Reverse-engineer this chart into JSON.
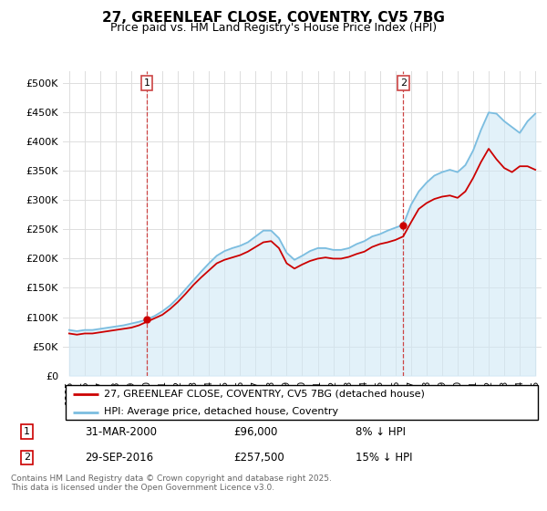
{
  "title": "27, GREENLEAF CLOSE, COVENTRY, CV5 7BG",
  "subtitle": "Price paid vs. HM Land Registry's House Price Index (HPI)",
  "ylim": [
    0,
    520000
  ],
  "yticks": [
    0,
    50000,
    100000,
    150000,
    200000,
    250000,
    300000,
    350000,
    400000,
    450000,
    500000
  ],
  "ytick_labels": [
    "£0",
    "£50K",
    "£100K",
    "£150K",
    "£200K",
    "£250K",
    "£300K",
    "£350K",
    "£400K",
    "£450K",
    "£500K"
  ],
  "legend_label_red": "27, GREENLEAF CLOSE, COVENTRY, CV5 7BG (detached house)",
  "legend_label_blue": "HPI: Average price, detached house, Coventry",
  "annotation1_date": "31-MAR-2000",
  "annotation1_price": "£96,000",
  "annotation1_hpi": "8% ↓ HPI",
  "annotation2_date": "29-SEP-2016",
  "annotation2_price": "£257,500",
  "annotation2_hpi": "15% ↓ HPI",
  "footer": "Contains HM Land Registry data © Crown copyright and database right 2025.\nThis data is licensed under the Open Government Licence v3.0.",
  "line_color_red": "#cc0000",
  "line_color_blue": "#7bbde0",
  "fill_color_blue": "#d0e8f5",
  "background_color": "#ffffff",
  "grid_color": "#dddddd",
  "years": [
    1995.0,
    1995.5,
    1996.0,
    1996.5,
    1997.0,
    1997.5,
    1998.0,
    1998.5,
    1999.0,
    1999.5,
    2000.0,
    2000.5,
    2001.0,
    2001.5,
    2002.0,
    2002.5,
    2003.0,
    2003.5,
    2004.0,
    2004.5,
    2005.0,
    2005.5,
    2006.0,
    2006.5,
    2007.0,
    2007.5,
    2008.0,
    2008.5,
    2009.0,
    2009.5,
    2010.0,
    2010.5,
    2011.0,
    2011.5,
    2012.0,
    2012.5,
    2013.0,
    2013.5,
    2014.0,
    2014.5,
    2015.0,
    2015.5,
    2016.0,
    2016.5,
    2017.0,
    2017.5,
    2018.0,
    2018.5,
    2019.0,
    2019.5,
    2020.0,
    2020.5,
    2021.0,
    2021.5,
    2022.0,
    2022.5,
    2023.0,
    2023.5,
    2024.0,
    2024.5,
    2025.0
  ],
  "hpi_values": [
    78000,
    76000,
    78000,
    78000,
    80000,
    82000,
    84000,
    86000,
    89000,
    92000,
    96000,
    102000,
    110000,
    120000,
    133000,
    148000,
    163000,
    178000,
    192000,
    205000,
    213000,
    218000,
    222000,
    228000,
    238000,
    248000,
    248000,
    235000,
    210000,
    198000,
    205000,
    213000,
    218000,
    218000,
    215000,
    215000,
    218000,
    225000,
    230000,
    238000,
    242000,
    248000,
    253000,
    258000,
    292000,
    315000,
    330000,
    342000,
    348000,
    352000,
    348000,
    360000,
    385000,
    420000,
    450000,
    448000,
    435000,
    425000,
    415000,
    435000,
    448000
  ],
  "price_values": [
    72000,
    70000,
    72000,
    72000,
    74000,
    76000,
    78000,
    80000,
    82000,
    86000,
    92000,
    98000,
    104000,
    114000,
    126000,
    140000,
    155000,
    168000,
    180000,
    192000,
    198000,
    202000,
    206000,
    212000,
    220000,
    228000,
    230000,
    218000,
    192000,
    183000,
    190000,
    196000,
    200000,
    202000,
    200000,
    200000,
    203000,
    208000,
    212000,
    220000,
    225000,
    228000,
    232000,
    238000,
    262000,
    285000,
    295000,
    302000,
    306000,
    308000,
    304000,
    315000,
    338000,
    365000,
    388000,
    370000,
    355000,
    348000,
    358000,
    358000,
    352000
  ],
  "purchase1_x": 2000.0,
  "purchase1_y": 96000,
  "purchase2_x": 2016.5,
  "purchase2_y": 257500,
  "xmin": 1994.6,
  "xmax": 2025.4
}
